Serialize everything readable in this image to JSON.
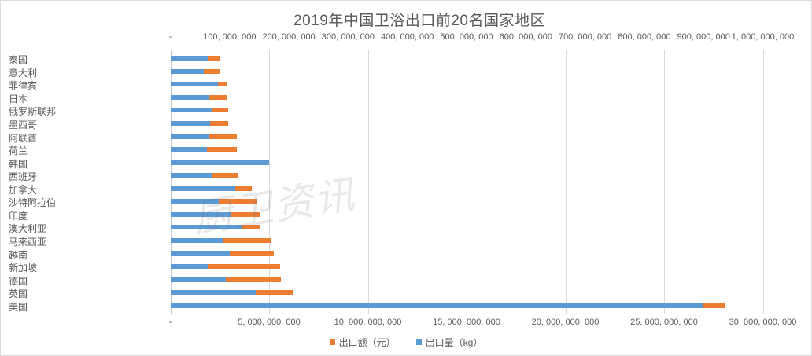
{
  "title": "2019年中国卫浴出口前20名国家地区",
  "watermark": "厨卫资讯",
  "legend": [
    {
      "label": "出口额（元）",
      "color": "#ED7D31"
    },
    {
      "label": "出口量（kg）",
      "color": "#5B9BD5"
    }
  ],
  "colors": {
    "export_value_orange": "#ED7D31",
    "export_volume_blue": "#5B9BD5",
    "gridline": "#d9d9d9",
    "axis_line": "#c6c6c6",
    "text": "#595959"
  },
  "chart_data": {
    "type": "bar",
    "orientation": "horizontal",
    "title": "2019年中国卫浴出口前20名国家地区",
    "grid": "vertical gridlines at bottom-axis major ticks",
    "legend_position": "bottom-center",
    "categories": [
      "泰国",
      "意大利",
      "菲律宾",
      "日本",
      "俄罗斯联邦",
      "墨西哥",
      "阿联酋",
      "荷兰",
      "韩国",
      "西班牙",
      "加拿大",
      "沙特阿拉伯",
      "印度",
      "澳大利亚",
      "马来西亚",
      "越南",
      "新加坡",
      "德国",
      "英国",
      "美国"
    ],
    "series": [
      {
        "name": "出口额（元）",
        "axis": "bottom",
        "color": "#ED7D31",
        "values": [
          2500000000,
          2530000000,
          2880000000,
          2900000000,
          2940000000,
          2940000000,
          3370000000,
          3370000000,
          4200000000,
          3430000000,
          4120000000,
          4400000000,
          4560000000,
          4560000000,
          5130000000,
          5230000000,
          5560000000,
          5600000000,
          6200000000,
          28050000000
        ]
      },
      {
        "name": "出口量（kg）",
        "axis": "top",
        "color": "#5B9BD5",
        "values": [
          63000000,
          57000000,
          81000000,
          66000000,
          71000000,
          67000000,
          65000000,
          62000000,
          167000000,
          70000000,
          109000000,
          82000000,
          103000000,
          121000000,
          88000000,
          100000000,
          63000000,
          94000000,
          144000000,
          898000000
        ]
      }
    ],
    "top_axis": {
      "min": 0,
      "max": 1000000000,
      "tick_interval": 100000000,
      "labels": [
        "-",
        "100, 000, 000",
        "200, 000, 000",
        "300, 000, 000",
        "400, 000, 000",
        "500, 000, 000",
        "600, 000, 000",
        "700, 000, 000",
        "800, 000, 000",
        "900, 000, 000",
        "1, 000, 000, 000"
      ]
    },
    "bottom_axis": {
      "min": 0,
      "max": 30000000000,
      "tick_interval": 5000000000,
      "labels": [
        "-",
        "5, 000, 000, 000",
        "10, 000, 000, 000",
        "15, 000, 000, 000",
        "20, 000, 000, 000",
        "25, 000, 000, 000",
        "30, 000, 000, 000"
      ]
    }
  }
}
